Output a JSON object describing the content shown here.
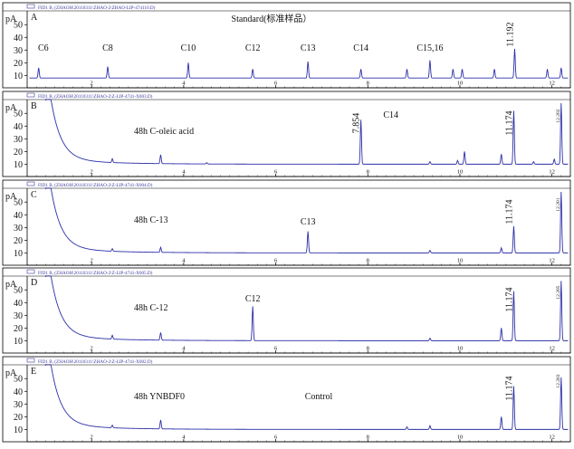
{
  "page": {
    "unit_label": "pA",
    "y_ticks": [
      10,
      20,
      30,
      40,
      50
    ],
    "x_ticks": [
      2,
      4,
      6,
      8,
      10,
      12
    ],
    "x_range": [
      0.6,
      12.4
    ],
    "y_range": [
      6,
      58
    ],
    "colors": {
      "trace": "#2b2fa8",
      "axis": "#000000",
      "header": "#3a3aa0",
      "text": "#111111"
    }
  },
  "chart_data": [
    {
      "type": "line",
      "panel": "A",
      "header": "FID1 B, (ZHAOH\\20110311\\ZHAO-2\\ZHAO-LIP-474110.D)",
      "note": "Standard(标准样品）",
      "peak_labels": [
        {
          "text": "C6",
          "x": 0.95
        },
        {
          "text": "C8",
          "x": 2.35
        },
        {
          "text": "C10",
          "x": 4.1
        },
        {
          "text": "C12",
          "x": 5.5
        },
        {
          "text": "C13",
          "x": 6.7
        },
        {
          "text": "C14",
          "x": 7.85
        },
        {
          "text": "C15,16",
          "x": 9.35
        }
      ],
      "rt_labels": [
        "11.192"
      ],
      "baseline": 8,
      "peaks": [
        {
          "x": 0.85,
          "y": 16
        },
        {
          "x": 2.35,
          "y": 17
        },
        {
          "x": 4.1,
          "y": 20
        },
        {
          "x": 5.5,
          "y": 15
        },
        {
          "x": 6.7,
          "y": 21
        },
        {
          "x": 7.85,
          "y": 15
        },
        {
          "x": 8.85,
          "y": 15
        },
        {
          "x": 9.35,
          "y": 22
        },
        {
          "x": 9.85,
          "y": 15
        },
        {
          "x": 10.05,
          "y": 15
        },
        {
          "x": 10.75,
          "y": 15
        },
        {
          "x": 11.19,
          "y": 31
        },
        {
          "x": 11.9,
          "y": 15
        },
        {
          "x": 12.2,
          "y": 16
        }
      ]
    },
    {
      "type": "line",
      "panel": "B",
      "header": "FID1 B, (ZHAOH\\20110311\\ZHAO-2\\Z-LIP-4741-X003.D)",
      "note": "48h C-oleic acid",
      "peak_labels": [
        {
          "text": "C14",
          "x": 8.5
        }
      ],
      "rt_labels": [
        "7.854",
        "11.174",
        "12.202"
      ],
      "baseline": 10,
      "peaks": [
        {
          "x": 2.45,
          "y": 13
        },
        {
          "x": 3.5,
          "y": 17
        },
        {
          "x": 4.5,
          "y": 11
        },
        {
          "x": 7.85,
          "y": 45
        },
        {
          "x": 9.35,
          "y": 12
        },
        {
          "x": 9.95,
          "y": 13
        },
        {
          "x": 10.1,
          "y": 20
        },
        {
          "x": 10.9,
          "y": 18
        },
        {
          "x": 11.17,
          "y": 52
        },
        {
          "x": 11.6,
          "y": 12
        },
        {
          "x": 12.05,
          "y": 14
        },
        {
          "x": 12.2,
          "y": 58
        }
      ]
    },
    {
      "type": "line",
      "panel": "C",
      "header": "FID1 B, (ZHAOH\\20110311\\ZHAO-2\\Z-LIP-4741-X004.D)",
      "note": "48h C-13",
      "peak_labels": [
        {
          "text": "C13",
          "x": 6.7
        }
      ],
      "rt_labels": [
        "11.174",
        "12.201"
      ],
      "baseline": 10,
      "peaks": [
        {
          "x": 2.45,
          "y": 12
        },
        {
          "x": 3.5,
          "y": 14
        },
        {
          "x": 6.7,
          "y": 27
        },
        {
          "x": 9.35,
          "y": 12
        },
        {
          "x": 10.9,
          "y": 14
        },
        {
          "x": 11.17,
          "y": 31
        },
        {
          "x": 12.2,
          "y": 58
        }
      ]
    },
    {
      "type": "line",
      "panel": "D",
      "header": "FID1 B, (ZHAOH\\20110311\\ZHAO-2\\Z-LIP-4741-X005.D)",
      "note": "48h C-12",
      "peak_labels": [
        {
          "text": "C12",
          "x": 5.5
        }
      ],
      "rt_labels": [
        "11.174",
        "12.205"
      ],
      "baseline": 10,
      "peaks": [
        {
          "x": 2.45,
          "y": 13
        },
        {
          "x": 3.5,
          "y": 16
        },
        {
          "x": 5.5,
          "y": 37
        },
        {
          "x": 9.35,
          "y": 12
        },
        {
          "x": 10.9,
          "y": 20
        },
        {
          "x": 11.17,
          "y": 49
        },
        {
          "x": 12.2,
          "y": 57
        }
      ]
    },
    {
      "type": "line",
      "panel": "E",
      "header": "FID1 B, (ZHAOH\\20110311\\ZHAO-2\\Z-LIP-4741-X002.D)",
      "note": "48h YNBDF0",
      "note2": "Control",
      "peak_labels": [],
      "rt_labels": [
        "11.174",
        "12.203"
      ],
      "baseline": 10,
      "peaks": [
        {
          "x": 2.45,
          "y": 12
        },
        {
          "x": 3.5,
          "y": 17
        },
        {
          "x": 8.85,
          "y": 12
        },
        {
          "x": 9.35,
          "y": 13
        },
        {
          "x": 10.9,
          "y": 20
        },
        {
          "x": 11.17,
          "y": 44
        },
        {
          "x": 12.2,
          "y": 51
        }
      ]
    }
  ]
}
